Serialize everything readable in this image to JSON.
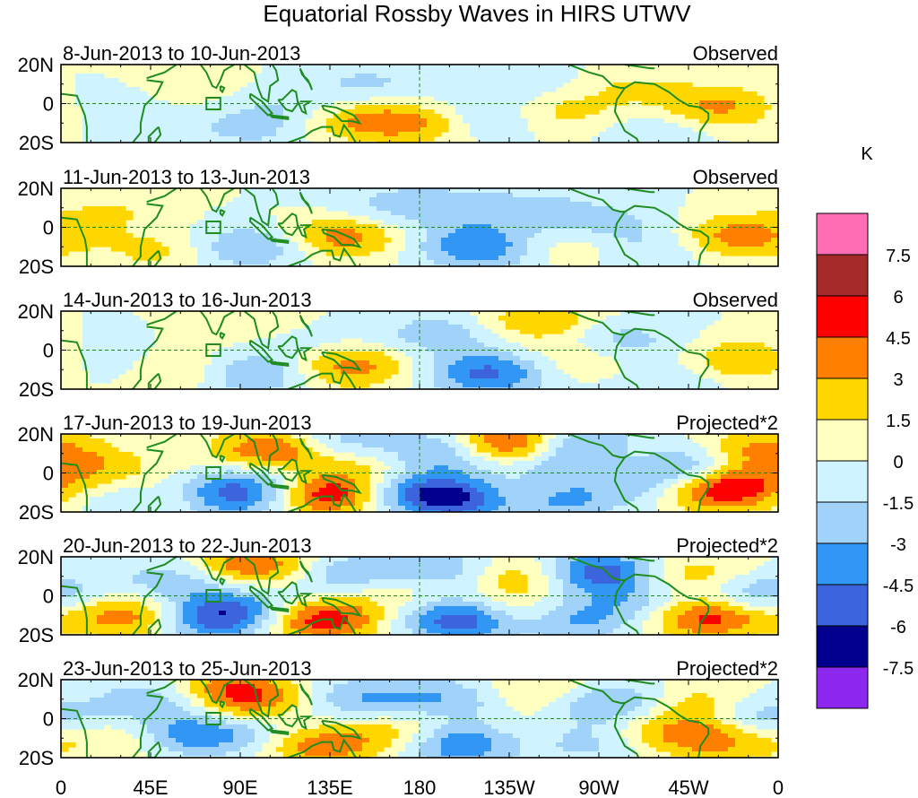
{
  "chart_data": {
    "type": "heatmap",
    "title": "Equatorial Rossby Waves in HIRS UTWV",
    "x_tick_labels": [
      "0",
      "45E",
      "90E",
      "135E",
      "180",
      "135W",
      "90W",
      "45W",
      "0"
    ],
    "x_ticks_lon": [
      0,
      45,
      90,
      135,
      180,
      225,
      270,
      315,
      360
    ],
    "y_tick_labels": [
      "20N",
      "0",
      "20S"
    ],
    "lat_range": [
      -20,
      20
    ],
    "lon_range": [
      0,
      360
    ],
    "units": "K",
    "colorbar": {
      "labels": [
        "7.5",
        "6",
        "4.5",
        "3",
        "1.5",
        "0",
        "-1.5",
        "-3",
        "-4.5",
        "-6",
        "-7.5"
      ],
      "levels": [
        7.5,
        6,
        4.5,
        3,
        1.5,
        0,
        -1.5,
        -3,
        -4.5,
        -6,
        -7.5
      ],
      "colors": [
        "#ff6eb4",
        "#a52a2a",
        "#ff0000",
        "#ff7f00",
        "#ffd700",
        "#ffffc0",
        "#cff3ff",
        "#a0d2fa",
        "#3296f5",
        "#3c64dc",
        "#00008c",
        "#8c28ee"
      ]
    },
    "panels": [
      {
        "period": "8-Jun-2013 to 10-Jun-2013",
        "label": "Observed",
        "scale": 1.0,
        "blobs": [
          [
            60,
            8,
            1.2
          ],
          [
            95,
            -12,
            -2
          ],
          [
            155,
            10,
            -1.8
          ],
          [
            148,
            -8,
            3.2
          ],
          [
            185,
            -10,
            3.5
          ],
          [
            210,
            -8,
            -3
          ],
          [
            250,
            -5,
            2.2
          ],
          [
            285,
            8,
            1.5
          ],
          [
            330,
            -2,
            3.5
          ],
          [
            30,
            0,
            -1.2
          ],
          [
            120,
            -2,
            -1.5
          ],
          [
            230,
            12,
            -1.5
          ],
          [
            300,
            -12,
            -1.5
          ]
        ]
      },
      {
        "period": "11-Jun-2013 to 13-Jun-2013",
        "label": "Observed",
        "scale": 1.0,
        "blobs": [
          [
            50,
            -12,
            2
          ],
          [
            95,
            -10,
            -3.5
          ],
          [
            140,
            -5,
            4
          ],
          [
            195,
            10,
            -2
          ],
          [
            210,
            -10,
            -4.5
          ],
          [
            240,
            8,
            -2
          ],
          [
            255,
            -8,
            2
          ],
          [
            275,
            0,
            -2.2
          ],
          [
            340,
            -5,
            4
          ],
          [
            25,
            8,
            1.5
          ],
          [
            300,
            -12,
            -1.5
          ],
          [
            160,
            12,
            -1.5
          ]
        ]
      },
      {
        "period": "14-Jun-2013 to 16-Jun-2013",
        "label": "Observed",
        "scale": 1.0,
        "blobs": [
          [
            60,
            -10,
            2.5
          ],
          [
            95,
            -12,
            -3.5
          ],
          [
            145,
            -8,
            4
          ],
          [
            190,
            8,
            -2.5
          ],
          [
            215,
            -12,
            -5
          ],
          [
            240,
            15,
            3
          ],
          [
            260,
            -5,
            2
          ],
          [
            280,
            5,
            -2.5
          ],
          [
            345,
            -5,
            3.5
          ],
          [
            20,
            -5,
            -2
          ],
          [
            305,
            -15,
            -1.5
          ],
          [
            120,
            5,
            -1.5
          ],
          [
            100,
            12,
            1.5
          ]
        ]
      },
      {
        "period": "17-Jun-2013 to 19-Jun-2013",
        "label": "Projected*2",
        "scale": 1.0,
        "blobs": [
          [
            20,
            0,
            3
          ],
          [
            35,
            -10,
            -3
          ],
          [
            60,
            -12,
            4.5
          ],
          [
            80,
            -12,
            -6.5
          ],
          [
            110,
            12,
            6
          ],
          [
            105,
            -5,
            -3
          ],
          [
            135,
            -10,
            7.5
          ],
          [
            135,
            15,
            -4
          ],
          [
            165,
            -8,
            -3.5
          ],
          [
            190,
            10,
            -5
          ],
          [
            200,
            -13,
            -8
          ],
          [
            225,
            -12,
            5
          ],
          [
            225,
            14,
            7
          ],
          [
            245,
            -14,
            -5
          ],
          [
            265,
            14,
            -6
          ],
          [
            280,
            10,
            4.5
          ],
          [
            300,
            -5,
            -3
          ],
          [
            330,
            -8,
            7
          ],
          [
            350,
            12,
            3.5
          ],
          [
            160,
            5,
            3
          ],
          [
            245,
            5,
            -3
          ],
          [
            310,
            5,
            -4
          ]
        ]
      },
      {
        "period": "20-Jun-2013 to 22-Jun-2013",
        "label": "Projected*2",
        "scale": 1.0,
        "blobs": [
          [
            25,
            -8,
            2.5
          ],
          [
            45,
            -12,
            3
          ],
          [
            60,
            8,
            -3
          ],
          [
            75,
            -12,
            -6
          ],
          [
            95,
            15,
            5
          ],
          [
            95,
            -5,
            -2.5
          ],
          [
            130,
            -12,
            6
          ],
          [
            145,
            10,
            -3.5
          ],
          [
            170,
            5,
            3
          ],
          [
            190,
            12,
            -4
          ],
          [
            205,
            -12,
            -8
          ],
          [
            225,
            -10,
            5
          ],
          [
            230,
            10,
            3.5
          ],
          [
            255,
            -12,
            -4
          ],
          [
            270,
            12,
            -6
          ],
          [
            295,
            -3,
            -2.5
          ],
          [
            315,
            10,
            3
          ],
          [
            325,
            -10,
            6
          ],
          [
            350,
            0,
            -4
          ]
        ]
      },
      {
        "period": "23-Jun-2013 to 25-Jun-2013",
        "label": "Projected*2",
        "scale": 1.0,
        "blobs": [
          [
            25,
            -10,
            2
          ],
          [
            50,
            10,
            -3
          ],
          [
            70,
            -8,
            -4.5
          ],
          [
            85,
            15,
            4.5
          ],
          [
            100,
            5,
            3
          ],
          [
            115,
            -5,
            -2.5
          ],
          [
            130,
            -12,
            5
          ],
          [
            150,
            10,
            -3
          ],
          [
            175,
            -5,
            2.5
          ],
          [
            195,
            10,
            -3
          ],
          [
            205,
            -12,
            -6.5
          ],
          [
            225,
            -10,
            3
          ],
          [
            240,
            14,
            2.5
          ],
          [
            260,
            -12,
            -2.5
          ],
          [
            275,
            8,
            -4
          ],
          [
            300,
            -5,
            2
          ],
          [
            320,
            8,
            2.5
          ],
          [
            330,
            -10,
            4
          ],
          [
            350,
            0,
            -3.5
          ]
        ]
      }
    ]
  }
}
